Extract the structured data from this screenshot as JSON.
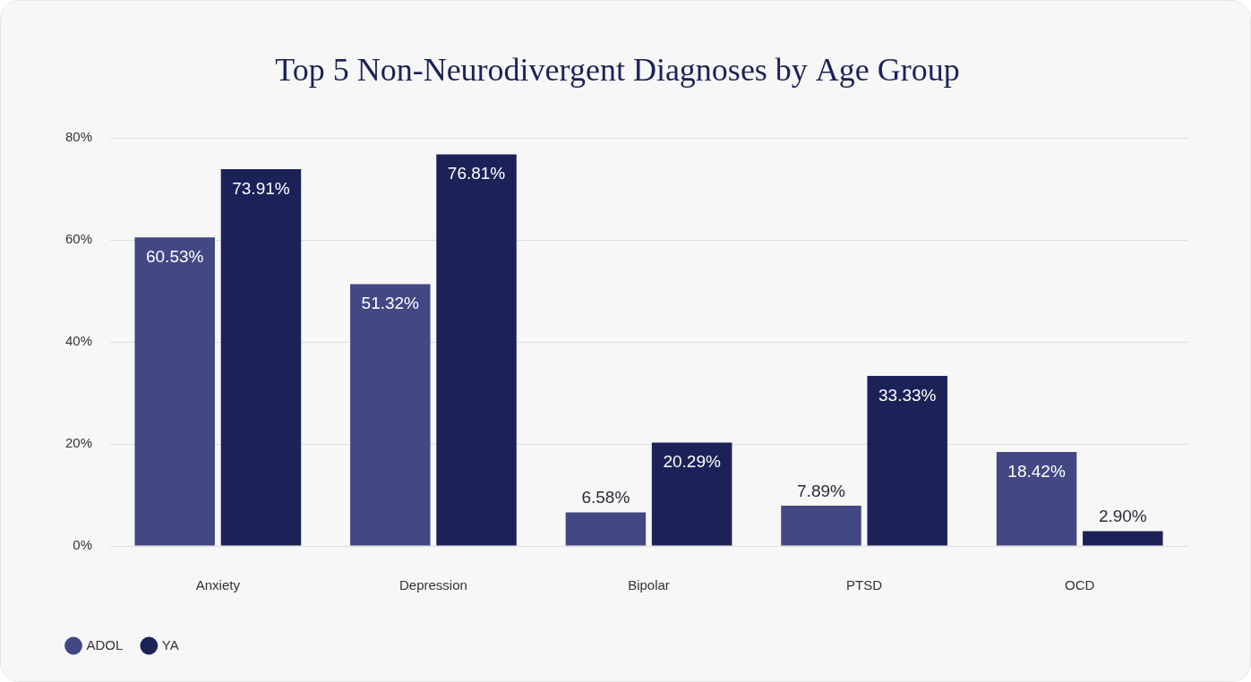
{
  "chart_data": {
    "type": "bar",
    "title": "Top 5 Non-Neurodivergent Diagnoses by Age Group",
    "categories": [
      "Anxiety",
      "Depression",
      "Bipolar",
      "PTSD",
      "OCD"
    ],
    "series": [
      {
        "name": "ADOL",
        "color": "#434784",
        "values": [
          60.53,
          51.32,
          6.58,
          7.89,
          18.42
        ],
        "value_labels": [
          "60.53%",
          "51.32%",
          "6.58%",
          "7.89%",
          "18.42%"
        ]
      },
      {
        "name": "YA",
        "color": "#1c2257",
        "values": [
          73.91,
          76.81,
          20.29,
          33.33,
          2.9
        ],
        "value_labels": [
          "73.91%",
          "76.81%",
          "20.29%",
          "33.33%",
          "2.90%"
        ]
      }
    ],
    "ylim": [
      0,
      80
    ],
    "yticks": [
      {
        "value": 0,
        "label": "0%"
      },
      {
        "value": 20,
        "label": "20%"
      },
      {
        "value": 40,
        "label": "40%"
      },
      {
        "value": 60,
        "label": "60%"
      },
      {
        "value": 80,
        "label": "80%"
      }
    ],
    "grid": true,
    "legend": "bottom-left",
    "data_labels": true
  }
}
